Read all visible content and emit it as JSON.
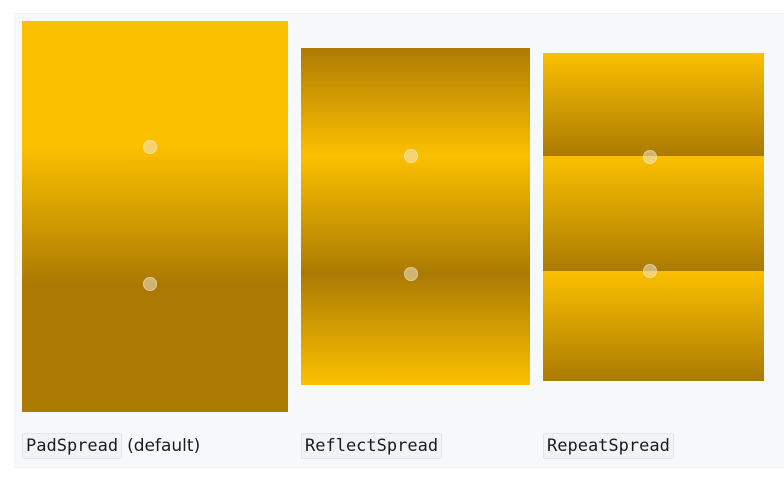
{
  "captions": {
    "pad": {
      "code": "PadSpread",
      "note": "(default)"
    },
    "reflect": {
      "code": "ReflectSpread"
    },
    "repeat": {
      "code": "RepeatSpread"
    }
  },
  "colors": {
    "light_gold": "#fbc000",
    "dark_gold": "#ab7a03",
    "frame_background": "#f7f8fa"
  }
}
